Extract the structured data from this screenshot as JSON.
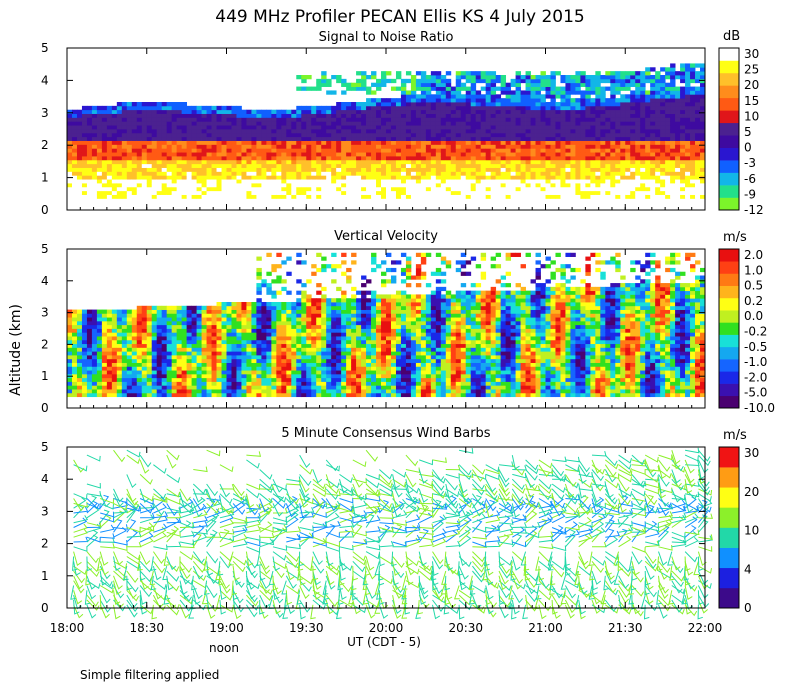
{
  "title": "449 MHz Profiler PECAN Ellis KS   4 July 2015",
  "ylabel": "Altitude (km)",
  "xlabel": "UT  (CDT - 5)",
  "noon_label": "noon",
  "footer": "Simple filtering applied",
  "colors": {
    "snr": [
      "#7cf52a",
      "#22e08a",
      "#12b6e8",
      "#1060ff",
      "#2a16d0",
      "#3e0aa0",
      "#4b2190",
      "#e0161a",
      "#ff5a14",
      "#ff8c1c",
      "#ffc02a",
      "#ffff14",
      "#ffffff"
    ],
    "vv": [
      "#4a0070",
      "#3a10b0",
      "#1a28e8",
      "#1565ff",
      "#14a8f0",
      "#18e0d8",
      "#30e020",
      "#c0f020",
      "#ffff14",
      "#ffb41c",
      "#ff7a14",
      "#ff4014",
      "#e81010"
    ],
    "wind": [
      "#3c0a8a",
      "#1c20e0",
      "#1090ff",
      "#22d8a8",
      "#8cf02a",
      "#ffff14",
      "#ff9c14",
      "#f01414"
    ]
  },
  "chart_data": [
    {
      "type": "heatmap",
      "title": "Signal to Noise Ratio",
      "units": "dB",
      "colorbar_ticks": [
        "30",
        "25",
        "20",
        "15",
        "10",
        "5",
        "0",
        "-3",
        "-6",
        "-9",
        "-12"
      ],
      "x_ticks": [
        "18:00",
        "18:30",
        "19:00",
        "19:30",
        "20:00",
        "20:30",
        "21:00",
        "21:30",
        "22:00"
      ],
      "xlim": [
        18,
        22
      ],
      "y_ticks": [
        "0",
        "1",
        "2",
        "3",
        "4",
        "5"
      ],
      "ylim": [
        0,
        5
      ]
    },
    {
      "type": "heatmap",
      "title": "Vertical Velocity",
      "units": "m/s",
      "colorbar_ticks": [
        "2.0",
        "1.0",
        "0.5",
        "0.2",
        "0.0",
        "-0.2",
        "-0.5",
        "-1.0",
        "-2.0",
        "-5.0",
        "-10.0"
      ],
      "x_ticks": [
        "18:00",
        "18:30",
        "19:00",
        "19:30",
        "20:00",
        "20:30",
        "21:00",
        "21:30",
        "22:00"
      ],
      "xlim": [
        18,
        22
      ],
      "y_ticks": [
        "0",
        "1",
        "2",
        "3",
        "4",
        "5"
      ],
      "ylim": [
        0,
        5
      ]
    },
    {
      "type": "scatter",
      "title": "5 Minute Consensus Wind Barbs",
      "units": "m/s",
      "colorbar_ticks": [
        "30",
        "20",
        "10",
        "4",
        "0"
      ],
      "x_ticks": [
        "18:00",
        "18:30",
        "19:00",
        "19:30",
        "20:00",
        "20:30",
        "21:00",
        "21:30",
        "22:00"
      ],
      "xlim": [
        18,
        22
      ],
      "y_ticks": [
        "0",
        "1",
        "2",
        "3",
        "4",
        "5"
      ],
      "ylim": [
        0,
        5
      ]
    }
  ]
}
